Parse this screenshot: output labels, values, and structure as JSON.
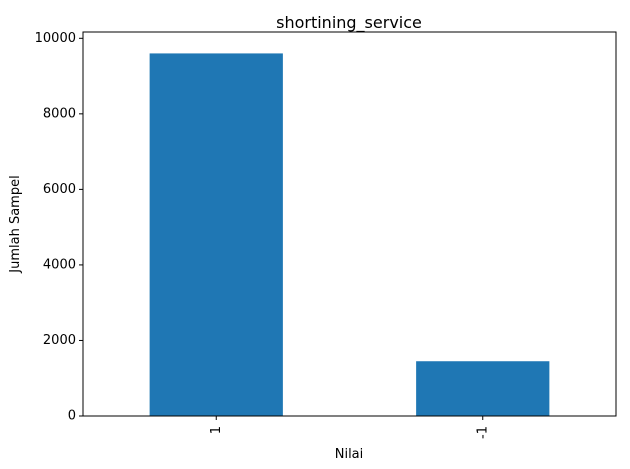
{
  "chart_data": {
    "type": "bar",
    "title": "shortining_service",
    "xlabel": "Nilai",
    "ylabel": "Jumlah Sampel",
    "categories": [
      "1",
      "-1"
    ],
    "values": [
      9600,
      1450
    ],
    "ylim": [
      0,
      10000
    ],
    "yticks": [
      0,
      2000,
      4000,
      6000,
      8000,
      10000
    ],
    "ytick_labels": [
      "0",
      "2000",
      "4000",
      "6000",
      "8000",
      "10000"
    ],
    "bar_color": "#1f77b4",
    "grid": false,
    "legend": "none"
  }
}
